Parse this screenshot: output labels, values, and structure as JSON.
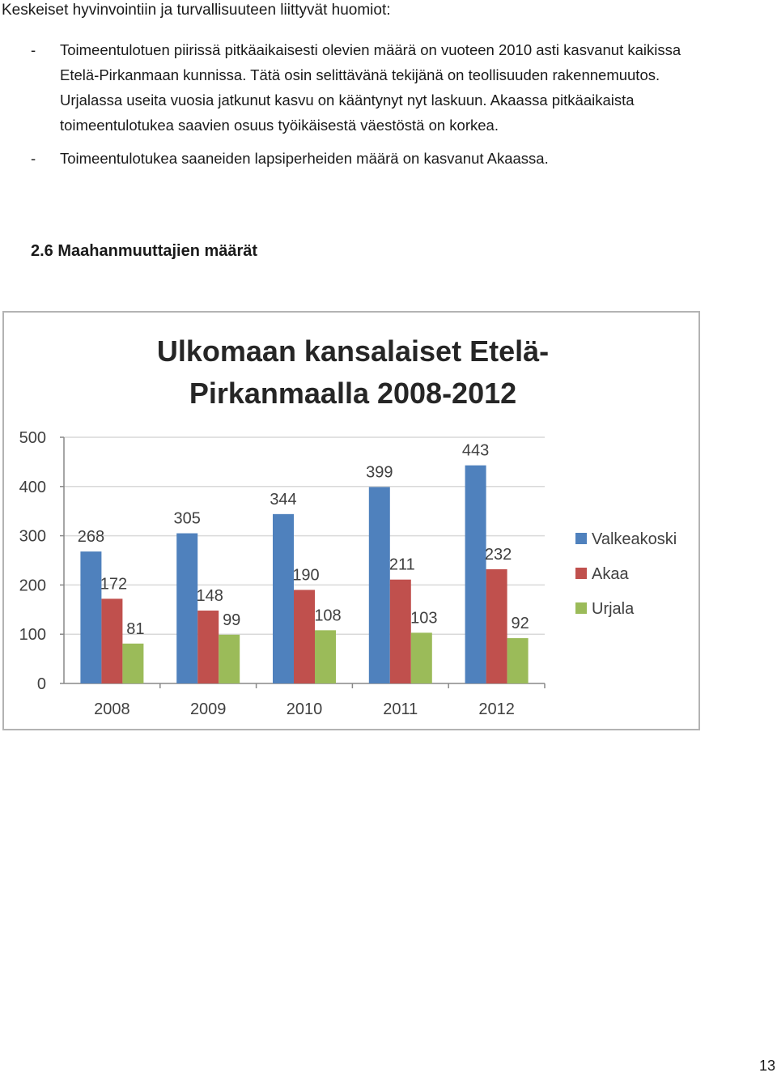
{
  "header": {
    "title": "Keskeiset hyvinvointiin ja turvallisuuteen liittyvät huomiot:"
  },
  "bullets": [
    {
      "dash": "-",
      "lines": [
        "Toimeentulotuen piirissä pitkäaikaisesti olevien määrä on vuoteen 2010 asti kasvanut kaikissa",
        "Etelä-Pirkanmaan kunnissa. Tätä osin selittävänä tekijänä on teollisuuden rakennemuutos.",
        "Urjalassa useita vuosia jatkunut kasvu on kääntynyt nyt laskuun. Akaassa pitkäaikaista",
        "toimeentulotukea saavien osuus työikäisestä väestöstä on korkea."
      ]
    },
    {
      "dash": "-",
      "lines": [
        "Toimeentulotukea saaneiden lapsiperheiden määrä on kasvanut Akaassa."
      ]
    }
  ],
  "section": {
    "title": "2.6 Maahanmuuttajien määrät"
  },
  "chart_data": {
    "type": "bar",
    "title_lines": [
      "Ulkomaan kansalaiset Etelä-",
      "Pirkanmaalla 2008-2012"
    ],
    "categories": [
      "2008",
      "2009",
      "2010",
      "2011",
      "2012"
    ],
    "series": [
      {
        "name": "Valkeakoski",
        "color": "#4f81bd",
        "values": [
          268,
          305,
          344,
          399,
          443
        ]
      },
      {
        "name": "Akaa",
        "color": "#c0504d",
        "values": [
          172,
          148,
          190,
          211,
          232
        ]
      },
      {
        "name": "Urjala",
        "color": "#9bbb59",
        "values": [
          81,
          99,
          108,
          103,
          92
        ]
      }
    ],
    "ylim": [
      0,
      500
    ],
    "yticks": [
      0,
      100,
      200,
      300,
      400,
      500
    ],
    "grid": true,
    "legend": "right"
  },
  "footer": {
    "page_number": "13"
  }
}
